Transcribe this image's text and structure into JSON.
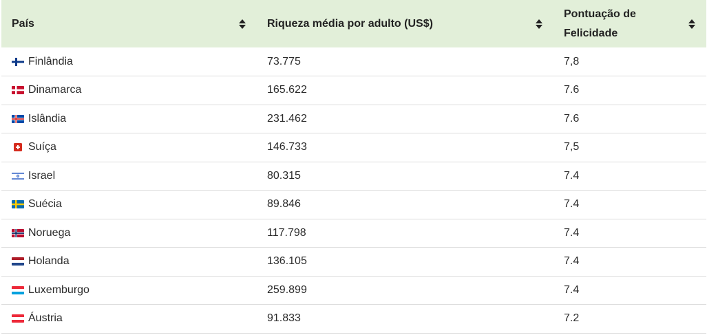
{
  "table": {
    "headers": {
      "country": "País",
      "wealth": "Riqueza média por adulto (US$)",
      "happiness_line1": "Pontuação de",
      "happiness_line2": "Felicidade"
    },
    "header_bg": "#e2efd9",
    "rows": [
      {
        "country": "Finlândia",
        "flag": "finland-flag-icon",
        "wealth": "73.775",
        "happiness": "7,8"
      },
      {
        "country": "Dinamarca",
        "flag": "denmark-flag-icon",
        "wealth": "165.622",
        "happiness": "7.6"
      },
      {
        "country": "Islândia",
        "flag": "iceland-flag-icon",
        "wealth": "231.462",
        "happiness": "7.6"
      },
      {
        "country": "Suíça",
        "flag": "switzerland-flag-icon",
        "wealth": "146.733",
        "happiness": "7,5"
      },
      {
        "country": "Israel",
        "flag": "israel-flag-icon",
        "wealth": "80.315",
        "happiness": "7.4"
      },
      {
        "country": "Suécia",
        "flag": "sweden-flag-icon",
        "wealth": "89.846",
        "happiness": "7.4"
      },
      {
        "country": "Noruega",
        "flag": "norway-flag-icon",
        "wealth": "117.798",
        "happiness": "7.4"
      },
      {
        "country": "Holanda",
        "flag": "netherlands-flag-icon",
        "wealth": "136.105",
        "happiness": "7.4"
      },
      {
        "country": "Luxemburgo",
        "flag": "luxembourg-flag-icon",
        "wealth": "259.899",
        "happiness": "7.4"
      },
      {
        "country": "Áustria",
        "flag": "austria-flag-icon",
        "wealth": "91.833",
        "happiness": "7.2"
      }
    ]
  }
}
